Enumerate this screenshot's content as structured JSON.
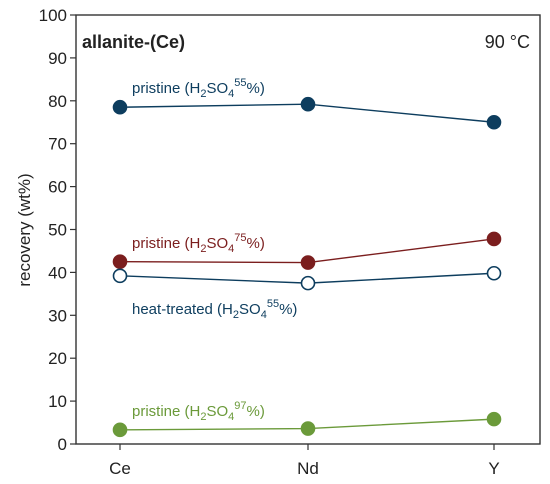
{
  "chart_data": {
    "type": "line",
    "title": "allanite-(Ce)",
    "annotation": "90 °C",
    "xlabel": "",
    "ylabel": "recovery (wt%)",
    "categories": [
      "Ce",
      "Nd",
      "Y"
    ],
    "ylim": [
      0,
      100
    ],
    "yticks": [
      "0",
      "10",
      "20",
      "30",
      "40",
      "50",
      "60",
      "70",
      "80",
      "90",
      "100"
    ],
    "grid": false,
    "series": [
      {
        "name": "pristine (H2SO4 55%)",
        "label_main": "pristine (H",
        "label_sub": "2",
        "label_mid": "SO",
        "label_sub2": "4",
        "label_sup": "55",
        "label_end": "%)",
        "color": "#0d3d5e",
        "marker": "filled",
        "values": [
          78.5,
          79.2,
          75.0
        ]
      },
      {
        "name": "pristine (H2SO4 75%)",
        "label_main": "pristine (H",
        "label_sub": "2",
        "label_mid": "SO",
        "label_sub2": "4",
        "label_sup": "75",
        "label_end": "%)",
        "color": "#7b1e1e",
        "marker": "filled",
        "values": [
          42.5,
          42.3,
          47.8
        ]
      },
      {
        "name": "heat-treated (H2SO4 55%)",
        "label_main": "heat-treated (H",
        "label_sub": "2",
        "label_mid": "SO",
        "label_sub2": "4",
        "label_sup": "55",
        "label_end": "%)",
        "color": "#0d3d5e",
        "marker": "open",
        "values": [
          39.2,
          37.5,
          39.8
        ]
      },
      {
        "name": "pristine (H2SO4 97%)",
        "label_main": "pristine (H",
        "label_sub": "2",
        "label_mid": "SO",
        "label_sub2": "4",
        "label_sup": "97",
        "label_end": "%)",
        "color": "#6b9a3a",
        "marker": "filled",
        "values": [
          3.3,
          3.6,
          5.8
        ]
      }
    ]
  }
}
